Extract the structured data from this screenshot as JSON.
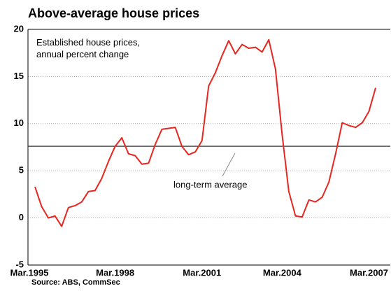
{
  "chart_data": {
    "type": "line",
    "title": "Above-average house prices",
    "subtitle": "Established house prices,\nannual percent change",
    "source": "Source: ABS, CommSec",
    "annotation": "long-term average",
    "average": 7.6,
    "categories": [
      "Mar.1995",
      null,
      null,
      null,
      null,
      null,
      null,
      null,
      null,
      null,
      null,
      null,
      "Mar.1998",
      null,
      null,
      null,
      null,
      null,
      null,
      null,
      null,
      null,
      null,
      null,
      null,
      "Mar.2001",
      null,
      null,
      null,
      null,
      null,
      null,
      null,
      null,
      null,
      null,
      null,
      "Mar.2004",
      null,
      null,
      null,
      null,
      null,
      null,
      null,
      null,
      null,
      null,
      null,
      null,
      "Mar.2007",
      null
    ],
    "series": [
      {
        "name": "Established house prices",
        "color": "#e8261f",
        "values": [
          3.3,
          1.2,
          0.0,
          0.2,
          -0.9,
          1.1,
          1.3,
          1.7,
          2.8,
          2.9,
          4.2,
          6.0,
          7.6,
          8.5,
          6.8,
          6.6,
          5.7,
          5.8,
          7.8,
          9.4,
          9.5,
          9.6,
          7.6,
          6.7,
          7.0,
          8.2,
          14.0,
          15.4,
          17.2,
          18.8,
          17.4,
          18.4,
          18.0,
          18.1,
          17.6,
          18.9,
          15.8,
          8.8,
          2.8,
          0.2,
          0.1,
          1.9,
          1.7,
          2.2,
          3.8,
          6.8,
          10.1,
          9.8,
          9.6,
          10.1,
          11.3,
          13.8
        ]
      }
    ],
    "ylim": [
      -5,
      20
    ],
    "yticks": [
      -5,
      0,
      5,
      10,
      15,
      20
    ],
    "grid": true
  }
}
